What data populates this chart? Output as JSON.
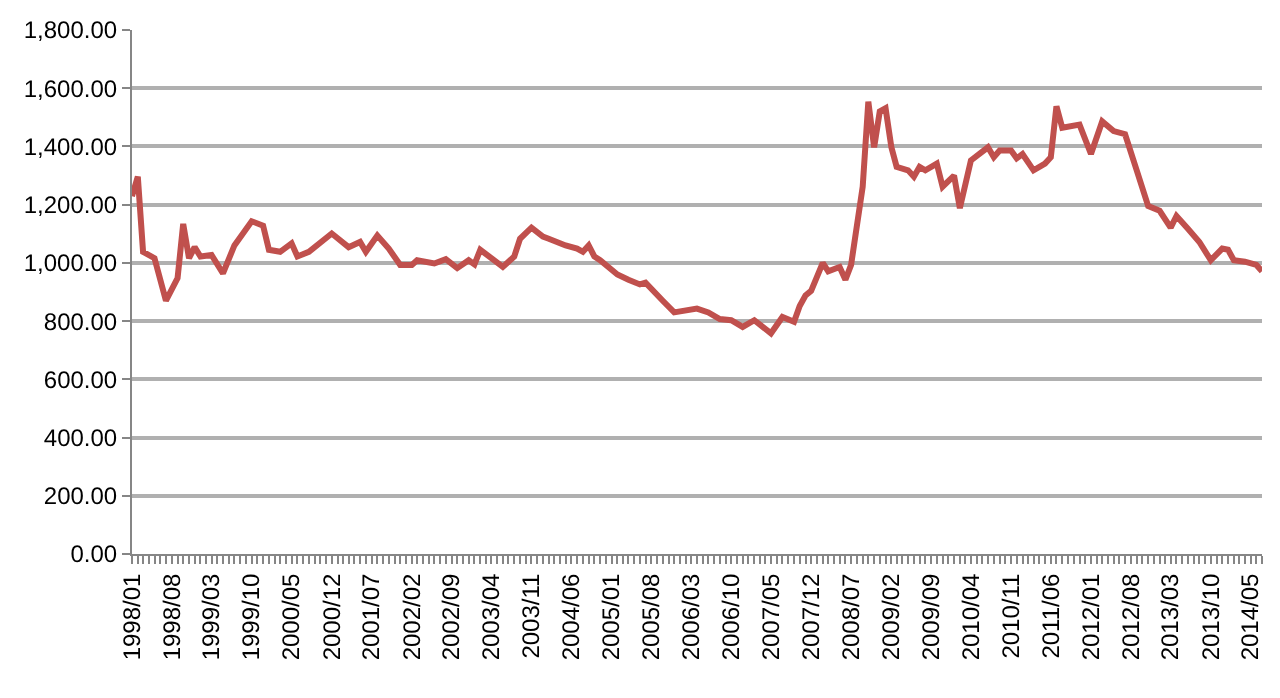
{
  "chart_data": {
    "type": "line",
    "x": [
      "1998-01",
      "1998-02",
      "1998-03",
      "1998-05",
      "1998-07",
      "1998-09",
      "1998-10",
      "1998-11",
      "1998-12",
      "1999-01",
      "1999-03",
      "1999-05",
      "1999-07",
      "1999-10",
      "1999-12",
      "2000-01",
      "2000-03",
      "2000-05",
      "2000-06",
      "2000-08",
      "2000-12",
      "2001-03",
      "2001-05",
      "2001-06",
      "2001-08",
      "2001-10",
      "2001-12",
      "2002-02",
      "2002-03",
      "2002-06",
      "2002-08",
      "2002-10",
      "2002-12",
      "2003-01",
      "2003-02",
      "2003-04",
      "2003-06",
      "2003-08",
      "2003-09",
      "2003-11",
      "2004-01",
      "2004-02",
      "2004-05",
      "2004-07",
      "2004-08",
      "2004-09",
      "2004-10",
      "2004-11",
      "2005-02",
      "2005-04",
      "2005-06",
      "2005-07",
      "2005-10",
      "2005-12",
      "2006-04",
      "2006-06",
      "2006-08",
      "2006-10",
      "2006-12",
      "2007-02",
      "2007-05",
      "2007-07",
      "2007-09",
      "2007-10",
      "2007-11",
      "2007-12",
      "2008-02",
      "2008-03",
      "2008-05",
      "2008-06",
      "2008-07",
      "2008-09",
      "2008-10",
      "2008-11",
      "2008-12",
      "2009-01",
      "2009-02",
      "2009-03",
      "2009-05",
      "2009-06",
      "2009-07",
      "2009-08",
      "2009-10",
      "2009-11",
      "2010-01",
      "2010-02",
      "2010-04",
      "2010-07",
      "2010-08",
      "2010-09",
      "2010-11",
      "2010-12",
      "2011-01",
      "2011-03",
      "2011-05",
      "2011-06",
      "2011-07",
      "2011-08",
      "2011-11",
      "2012-01",
      "2012-03",
      "2012-05",
      "2012-07",
      "2012-09",
      "2012-11",
      "2013-01",
      "2013-03",
      "2013-04",
      "2013-06",
      "2013-08",
      "2013-10",
      "2013-12",
      "2014-01",
      "2014-02",
      "2014-04",
      "2014-06",
      "2014-07"
    ],
    "series": [
      {
        "color": "#c0504d",
        "values": [
          1229,
          1296,
          1038,
          1016,
          870,
          948,
          1134,
          1016,
          1054,
          1022,
          1027,
          964,
          1060,
          1143,
          1128,
          1045,
          1038,
          1067,
          1022,
          1038,
          1101,
          1054,
          1072,
          1038,
          1094,
          1049,
          993,
          993,
          1009,
          998,
          1013,
          982,
          1009,
          995,
          1045,
          1016,
          986,
          1022,
          1083,
          1121,
          1090,
          1083,
          1060,
          1049,
          1038,
          1060,
          1022,
          1009,
          960,
          942,
          926,
          932,
          870,
          830,
          843,
          830,
          807,
          803,
          780,
          803,
          758,
          814,
          798,
          852,
          888,
          904,
          1000,
          971,
          986,
          942,
          993,
          1262,
          1554,
          1397,
          1520,
          1531,
          1397,
          1330,
          1318,
          1296,
          1330,
          1318,
          1341,
          1262,
          1300,
          1188,
          1352,
          1397,
          1363,
          1386,
          1386,
          1359,
          1374,
          1318,
          1341,
          1363,
          1538,
          1464,
          1475,
          1374,
          1486,
          1453,
          1442,
          1318,
          1195,
          1179,
          1121,
          1161,
          1117,
          1072,
          1009,
          1049,
          1045,
          1009,
          1004,
          993,
          971
        ]
      }
    ],
    "xlim": [
      "1998-01",
      "2014-07"
    ],
    "xticks": [
      {
        "value": "1998-01",
        "label": "1998/01"
      },
      {
        "value": "1998-08",
        "label": "1998/08"
      },
      {
        "value": "1999-03",
        "label": "1999/03"
      },
      {
        "value": "1999-10",
        "label": "1999/10"
      },
      {
        "value": "2000-05",
        "label": "2000/05"
      },
      {
        "value": "2000-12",
        "label": "2000/12"
      },
      {
        "value": "2001-07",
        "label": "2001/07"
      },
      {
        "value": "2002-02",
        "label": "2002/02"
      },
      {
        "value": "2002-09",
        "label": "2002/09"
      },
      {
        "value": "2003-04",
        "label": "2003/04"
      },
      {
        "value": "2003-11",
        "label": "2003/11"
      },
      {
        "value": "2004-06",
        "label": "2004/06"
      },
      {
        "value": "2005-01",
        "label": "2005/01"
      },
      {
        "value": "2005-08",
        "label": "2005/08"
      },
      {
        "value": "2006-03",
        "label": "2006/03"
      },
      {
        "value": "2006-10",
        "label": "2006/10"
      },
      {
        "value": "2007-05",
        "label": "2007/05"
      },
      {
        "value": "2007-12",
        "label": "2007/12"
      },
      {
        "value": "2008-07",
        "label": "2008/07"
      },
      {
        "value": "2009-02",
        "label": "2009/02"
      },
      {
        "value": "2009-09",
        "label": "2009/09"
      },
      {
        "value": "2010-04",
        "label": "2010/04"
      },
      {
        "value": "2010-11",
        "label": "2010/11"
      },
      {
        "value": "2011-06",
        "label": "2011/06"
      },
      {
        "value": "2012-01",
        "label": "2012/01"
      },
      {
        "value": "2012-08",
        "label": "2012/08"
      },
      {
        "value": "2013-03",
        "label": "2013/03"
      },
      {
        "value": "2013-10",
        "label": "2013/10"
      },
      {
        "value": "2014-05",
        "label": "2014/05"
      }
    ],
    "ylim": [
      0,
      1800
    ],
    "yticks": [
      {
        "value": 0,
        "label": "0.00"
      },
      {
        "value": 200,
        "label": "200.00"
      },
      {
        "value": 400,
        "label": "400.00"
      },
      {
        "value": 600,
        "label": "600.00"
      },
      {
        "value": 800,
        "label": "800.00"
      },
      {
        "value": 1000,
        "label": "1,000.00"
      },
      {
        "value": 1200,
        "label": "1,200.00"
      },
      {
        "value": 1400,
        "label": "1,400.00"
      },
      {
        "value": 1600,
        "label": "1,600.00"
      },
      {
        "value": 1800,
        "label": "1,800.00"
      }
    ],
    "grid": "y",
    "marker": "none",
    "line_style": "solid"
  }
}
